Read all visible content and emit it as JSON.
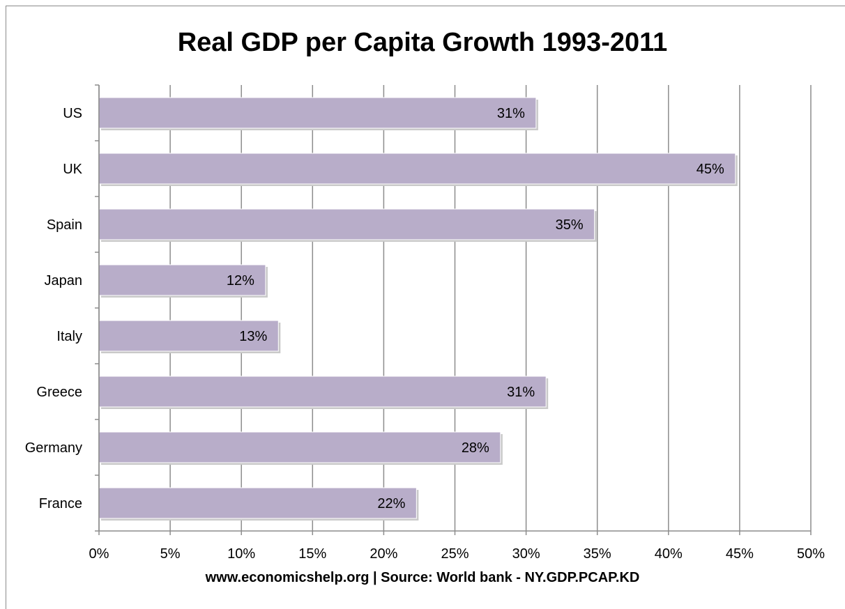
{
  "chart_data": {
    "type": "bar",
    "orientation": "horizontal",
    "title": "Real GDP per Capita Growth 1993-2011",
    "xlabel": "www.economicshelp.org | Source: World bank - NY.GDP.PCAP.KD",
    "ylabel": "",
    "categories": [
      "US",
      "UK",
      "Spain",
      "Japan",
      "Italy",
      "Greece",
      "Germany",
      "France"
    ],
    "values": [
      30.7,
      44.7,
      34.8,
      11.7,
      12.6,
      31.4,
      28.2,
      22.3
    ],
    "data_labels": [
      "31%",
      "45%",
      "35%",
      "12%",
      "13%",
      "31%",
      "28%",
      "22%"
    ],
    "xlim": [
      0,
      50
    ],
    "x_ticks": [
      0,
      5,
      10,
      15,
      20,
      25,
      30,
      35,
      40,
      45,
      50
    ],
    "x_tick_labels": [
      "0%",
      "5%",
      "10%",
      "15%",
      "20%",
      "25%",
      "30%",
      "35%",
      "40%",
      "45%",
      "50%"
    ],
    "grid": true,
    "legend": "none",
    "bar_color": "#b8adc9"
  }
}
